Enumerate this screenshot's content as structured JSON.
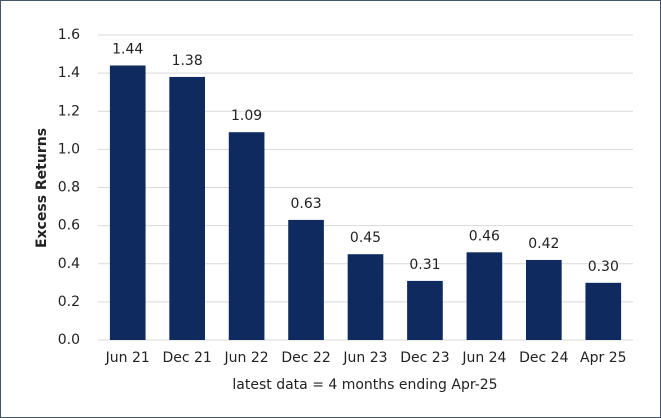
{
  "chart_data": {
    "type": "bar",
    "ylabel": "Excess Returns",
    "xlabel": "latest data = 4 months ending Apr-25",
    "categories": [
      "Jun 21",
      "Dec 21",
      "Jun 22",
      "Dec 22",
      "Jun 23",
      "Dec 23",
      "Jun 24",
      "Dec 24",
      "Apr 25"
    ],
    "values": [
      1.44,
      1.38,
      1.09,
      0.63,
      0.45,
      0.31,
      0.46,
      0.42,
      0.3
    ],
    "value_labels": [
      "1.44",
      "1.38",
      "1.09",
      "0.63",
      "0.45",
      "0.31",
      "0.46",
      "0.42",
      "0.30"
    ],
    "color": "#0e2a5f",
    "ylim": [
      0,
      1.6
    ],
    "yticks": [
      {
        "value": 0,
        "label": "0.0"
      },
      0.2,
      0.4,
      0.6,
      0.8,
      {
        "value": 1,
        "label": "1.0"
      },
      1.2,
      1.4,
      1.6
    ],
    "grid": true
  }
}
